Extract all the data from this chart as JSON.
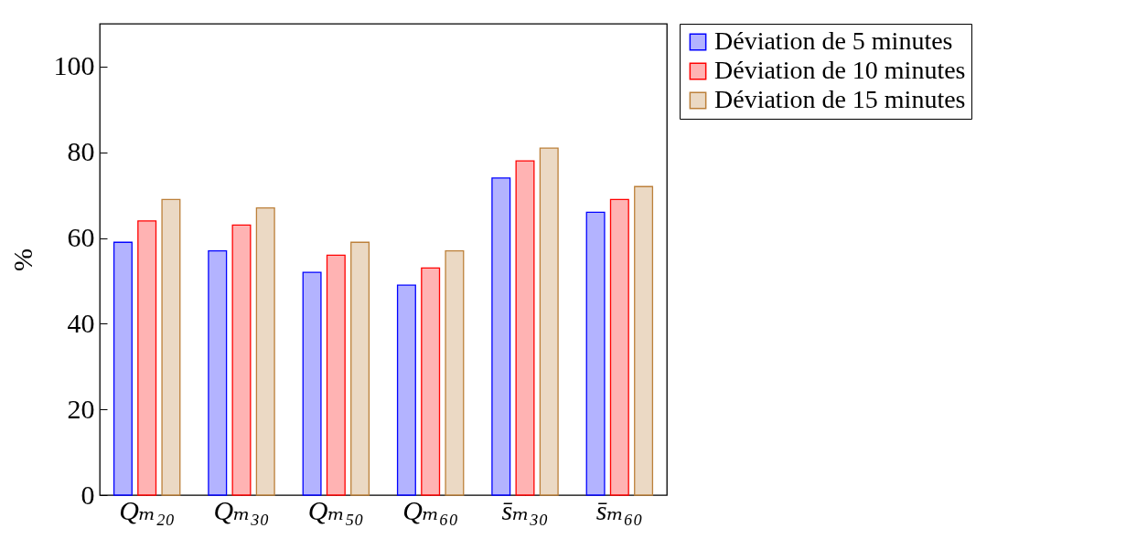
{
  "chart_data": {
    "type": "bar",
    "ylabel": "%",
    "categories": [
      "Qₘ₂₀",
      "Qₘ₃₀",
      "Qₘ₅₀",
      "Qₘ₆₀",
      "s̄ₘ₃₀",
      "s̄ₘ₆₀"
    ],
    "series": [
      {
        "name": "Déviation de 5 minutes",
        "color": "#b3b3ff",
        "values": [
          59,
          57,
          52,
          49,
          74,
          66
        ]
      },
      {
        "name": "Déviation de 10 minutes",
        "color": "#ffb3b3",
        "values": [
          64,
          63,
          56,
          53,
          78,
          69
        ]
      },
      {
        "name": "Déviation de 15 minutes",
        "color": "#ebd9c4",
        "values": [
          69,
          67,
          59,
          57,
          81,
          72
        ]
      }
    ],
    "ylim": [
      0,
      110
    ],
    "yticks": [
      0,
      20,
      40,
      60,
      80,
      100
    ],
    "grid": false,
    "legend": "top right"
  }
}
